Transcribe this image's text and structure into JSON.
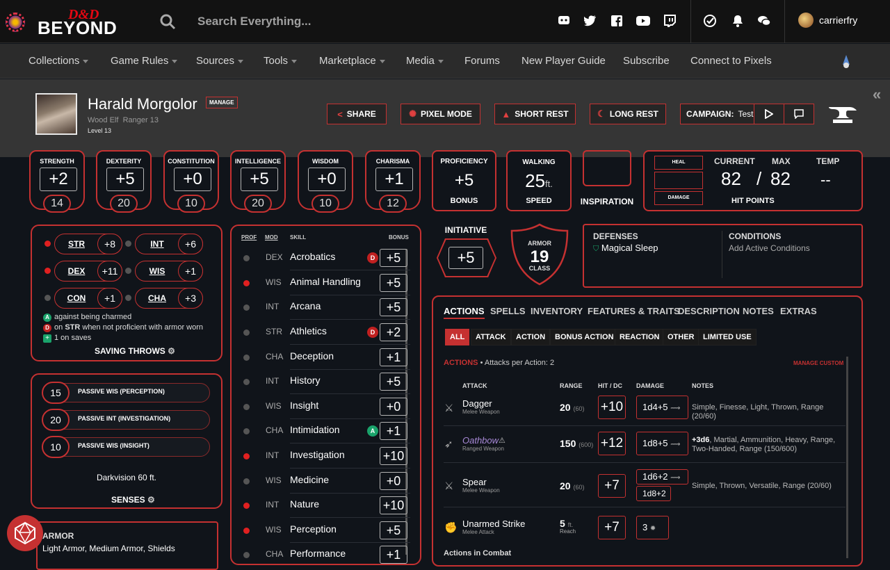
{
  "topbar": {
    "logo_dd": "D&D",
    "logo_beyond": "BEYOND",
    "search_placeholder": "Search Everything...",
    "username": "carrierfry"
  },
  "nav": [
    "Collections",
    "Game Rules",
    "Sources",
    "Tools",
    "Marketplace",
    "Media",
    "Forums",
    "New Player Guide",
    "Subscribe",
    "Connect to Pixels"
  ],
  "character": {
    "name": "Harald Morgolor",
    "manage": "MANAGE",
    "race": "Wood Elf",
    "class": "Ranger 13",
    "level": "Level 13"
  },
  "header_buttons": {
    "share": "SHARE",
    "pixel": "PIXEL MODE",
    "short": "SHORT REST",
    "long": "LONG REST",
    "campaign_label": "CAMPAIGN:",
    "campaign_name": "Test"
  },
  "stats": [
    {
      "label": "STRENGTH",
      "mod": "+2",
      "score": "14"
    },
    {
      "label": "DEXTERITY",
      "mod": "+5",
      "score": "20"
    },
    {
      "label": "CONSTITUTION",
      "mod": "+0",
      "score": "10"
    },
    {
      "label": "INTELLIGENCE",
      "mod": "+5",
      "score": "20"
    },
    {
      "label": "WISDOM",
      "mod": "+0",
      "score": "10"
    },
    {
      "label": "CHARISMA",
      "mod": "+1",
      "score": "12"
    }
  ],
  "proficiency": {
    "label": "PROFICIENCY",
    "value": "+5",
    "sub": "BONUS"
  },
  "walking": {
    "label": "WALKING",
    "value": "25",
    "unit": "ft.",
    "sub": "SPEED"
  },
  "inspiration": "INSPIRATION",
  "hp": {
    "heal": "HEAL",
    "damage": "DAMAGE",
    "current_label": "CURRENT",
    "max_label": "MAX",
    "temp_label": "TEMP",
    "current": "82",
    "sep": "/",
    "max": "82",
    "temp": "--",
    "title": "HIT POINTS"
  },
  "saves": [
    {
      "ab": "STR",
      "val": "+8",
      "prof": true
    },
    {
      "ab": "INT",
      "val": "+6",
      "prof": false
    },
    {
      "ab": "DEX",
      "val": "+11",
      "prof": true
    },
    {
      "ab": "WIS",
      "val": "+1",
      "prof": false
    },
    {
      "ab": "CON",
      "val": "+1",
      "prof": false
    },
    {
      "ab": "CHA",
      "val": "+3",
      "prof": false
    }
  ],
  "save_notes": [
    "against being charmed",
    "on",
    "STR",
    "when not proficient with armor worn",
    "1 on saves"
  ],
  "saving_throws_title": "SAVING THROWS",
  "passives": [
    {
      "val": "15",
      "label": "PASSIVE WIS (PERCEPTION)"
    },
    {
      "val": "20",
      "label": "PASSIVE INT (INVESTIGATION)"
    },
    {
      "val": "10",
      "label": "PASSIVE WIS (INSIGHT)"
    }
  ],
  "darkvision": "Darkvision 60 ft.",
  "senses_title": "SENSES",
  "armor_prof": {
    "title": "ARMOR",
    "list": "Light Armor, Medium Armor, Shields"
  },
  "skills_header": {
    "prof": "PROF",
    "mod": "MOD",
    "skill": "SKILL",
    "bonus": "BONUS"
  },
  "skills": [
    {
      "mod": "DEX",
      "name": "Acrobatics",
      "bonus": "+5",
      "prof": false,
      "badge": "D"
    },
    {
      "mod": "WIS",
      "name": "Animal Handling",
      "bonus": "+5",
      "prof": true,
      "badge": ""
    },
    {
      "mod": "INT",
      "name": "Arcana",
      "bonus": "+5",
      "prof": false,
      "badge": ""
    },
    {
      "mod": "STR",
      "name": "Athletics",
      "bonus": "+2",
      "prof": false,
      "badge": "D"
    },
    {
      "mod": "CHA",
      "name": "Deception",
      "bonus": "+1",
      "prof": false,
      "badge": ""
    },
    {
      "mod": "INT",
      "name": "History",
      "bonus": "+5",
      "prof": false,
      "badge": ""
    },
    {
      "mod": "WIS",
      "name": "Insight",
      "bonus": "+0",
      "prof": false,
      "badge": ""
    },
    {
      "mod": "CHA",
      "name": "Intimidation",
      "bonus": "+1",
      "prof": false,
      "badge": "A"
    },
    {
      "mod": "INT",
      "name": "Investigation",
      "bonus": "+10",
      "prof": true,
      "badge": ""
    },
    {
      "mod": "WIS",
      "name": "Medicine",
      "bonus": "+0",
      "prof": false,
      "badge": ""
    },
    {
      "mod": "INT",
      "name": "Nature",
      "bonus": "+10",
      "prof": true,
      "badge": ""
    },
    {
      "mod": "WIS",
      "name": "Perception",
      "bonus": "+5",
      "prof": true,
      "badge": ""
    },
    {
      "mod": "CHA",
      "name": "Performance",
      "bonus": "+1",
      "prof": false,
      "badge": ""
    }
  ],
  "initiative": {
    "label": "INITIATIVE",
    "value": "+5"
  },
  "armor_class": {
    "top": "ARMOR",
    "value": "19",
    "bottom": "CLASS"
  },
  "defenses": {
    "title": "DEFENSES",
    "item": "Magical Sleep"
  },
  "conditions": {
    "title": "CONDITIONS",
    "add": "Add Active Conditions"
  },
  "tabs": [
    "ACTIONS",
    "SPELLS",
    "INVENTORY",
    "FEATURES & TRAITS",
    "DESCRIPTION",
    "NOTES",
    "EXTRAS"
  ],
  "filters": [
    "ALL",
    "ATTACK",
    "ACTION",
    "BONUS ACTION",
    "REACTION",
    "OTHER",
    "LIMITED USE"
  ],
  "actions_header": {
    "title": "ACTIONS",
    "per": "• Attacks per Action: 2",
    "manage": "MANAGE CUSTOM"
  },
  "attack_cols": {
    "attack": "ATTACK",
    "range": "RANGE",
    "hit": "HIT / DC",
    "damage": "DAMAGE",
    "notes": "NOTES"
  },
  "attacks": [
    {
      "name": "Dagger",
      "sub": "Melee Weapon",
      "range": "20",
      "range2": "(60)",
      "hit": "+10",
      "dmg": "1d4+5",
      "notes": "Simple, Finesse, Light, Thrown, Range (20/60)"
    },
    {
      "name": "Oathbow",
      "sub": "Ranged Weapon",
      "range": "150",
      "range2": "(600)",
      "hit": "+12",
      "dmg": "1d8+5",
      "notes_bold": "+3d6",
      "notes": ", Martial, Ammunition, Heavy, Range, Two-Handed, Range (150/600)"
    },
    {
      "name": "Spear",
      "sub": "Melee Weapon",
      "range": "20",
      "range2": "(60)",
      "hit": "+7",
      "dmg": "1d6+2",
      "dmg2": "1d8+2",
      "notes": "Simple, Thrown, Versatile, Range (20/60)"
    },
    {
      "name": "Unarmed Strike",
      "sub": "Melee Attack",
      "range": "5",
      "range_unit": "ft.",
      "range2": "Reach",
      "hit": "+7",
      "dmg": "3",
      "notes": ""
    }
  ],
  "actions_in_combat": "Actions in Combat"
}
